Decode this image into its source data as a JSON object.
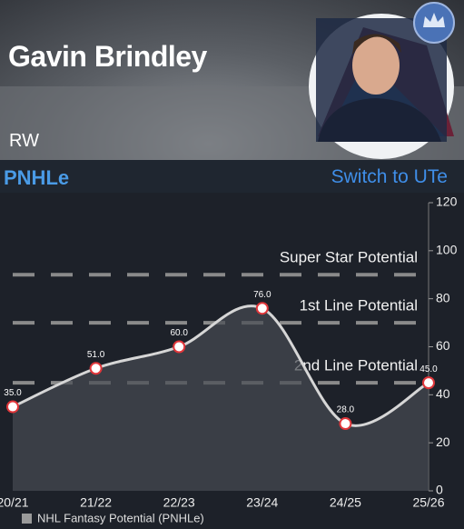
{
  "header": {
    "name": "Gavin Brindley",
    "position": "RW"
  },
  "toggle": {
    "current": "PNHLe",
    "switch": "Switch to UTe"
  },
  "chart_data": {
    "type": "line",
    "categories": [
      "20/21",
      "21/22",
      "22/23",
      "23/24",
      "24/25",
      "25/26"
    ],
    "series": [
      {
        "name": "NHL Fantasy Potential (PNHLe)",
        "color": "#d6d6d6",
        "values": [
          35,
          51,
          60,
          76,
          28,
          45
        ],
        "value_labels": [
          "35.0",
          "51.0",
          "60.0",
          "76.0",
          "28.0",
          "45.0"
        ]
      }
    ],
    "ylim": [
      0,
      120
    ],
    "yticks": [
      0,
      20,
      40,
      60,
      80,
      100,
      120
    ],
    "reference_lines": [
      {
        "value": 90,
        "label": "Super Star Potential"
      },
      {
        "value": 70,
        "label": "1st Line Potential"
      },
      {
        "value": 45,
        "label": "2nd Line Potential"
      }
    ]
  }
}
